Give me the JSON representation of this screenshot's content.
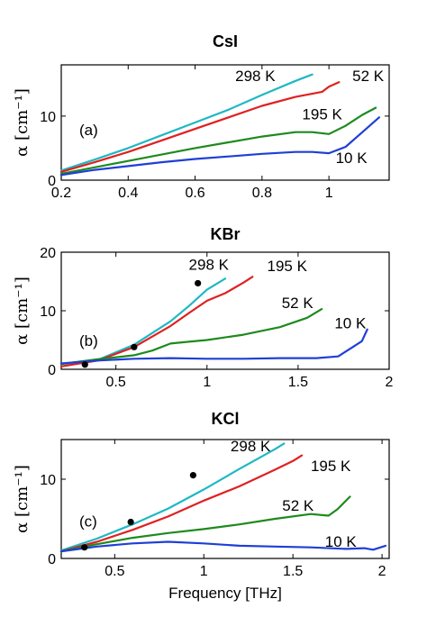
{
  "chart_data": [
    {
      "type": "line",
      "title": "CsI",
      "panel_tag": "(a)",
      "ylabel": "α [cm⁻¹]",
      "xlabel": "",
      "xlim": [
        0.2,
        1.18
      ],
      "ylim": [
        0,
        18
      ],
      "xticks": [
        0.2,
        0.4,
        0.6,
        0.8,
        1.0
      ],
      "xtick_labels": [
        "0.2",
        "0.4",
        "0.6",
        "0.8",
        "1"
      ],
      "yticks": [
        0,
        10
      ],
      "ytick_labels": [
        "0",
        "10"
      ],
      "series": [
        {
          "name": "298 K",
          "color": "#1fb8c3",
          "label_at": [
            0.72,
            15.5
          ],
          "x": [
            0.2,
            0.3,
            0.4,
            0.5,
            0.6,
            0.7,
            0.8,
            0.9,
            0.95
          ],
          "y": [
            1.5,
            3.2,
            5.0,
            7.0,
            9.0,
            11.0,
            13.3,
            15.5,
            16.5
          ]
        },
        {
          "name": "52 K",
          "color": "#e02020",
          "label_at": [
            1.07,
            15.5
          ],
          "x": [
            0.2,
            0.3,
            0.4,
            0.5,
            0.6,
            0.7,
            0.8,
            0.9,
            0.98,
            1.0,
            1.03
          ],
          "y": [
            1.3,
            2.8,
            4.4,
            6.2,
            8.0,
            9.8,
            11.6,
            13.0,
            13.8,
            14.6,
            15.3
          ]
        },
        {
          "name": "195 K",
          "color": "#1e8a1e",
          "label_at": [
            0.92,
            9.5
          ],
          "x": [
            0.2,
            0.3,
            0.4,
            0.5,
            0.6,
            0.7,
            0.8,
            0.9,
            0.95,
            1.0,
            1.05,
            1.1,
            1.14
          ],
          "y": [
            1.0,
            2.0,
            3.0,
            4.0,
            5.0,
            5.9,
            6.8,
            7.5,
            7.5,
            7.2,
            8.5,
            10.2,
            11.3
          ]
        },
        {
          "name": "10 K",
          "color": "#1f3fd6",
          "label_at": [
            1.02,
            2.7
          ],
          "x": [
            0.2,
            0.3,
            0.4,
            0.5,
            0.6,
            0.7,
            0.8,
            0.9,
            0.95,
            1.0,
            1.05,
            1.1,
            1.15
          ],
          "y": [
            0.8,
            1.6,
            2.2,
            2.8,
            3.3,
            3.7,
            4.1,
            4.4,
            4.4,
            4.2,
            5.2,
            7.5,
            9.8
          ]
        }
      ],
      "points": []
    },
    {
      "type": "line",
      "title": "KBr",
      "panel_tag": "(b)",
      "ylabel": "α [cm⁻¹]",
      "xlabel": "",
      "xlim": [
        0.2,
        2.0
      ],
      "ylim": [
        0,
        20
      ],
      "xticks": [
        0.5,
        1.0,
        1.5,
        2.0
      ],
      "xtick_labels": [
        "0.5",
        "1",
        "1.5",
        "2"
      ],
      "yticks": [
        0,
        10,
        20
      ],
      "ytick_labels": [
        "0",
        "10",
        "20"
      ],
      "series": [
        {
          "name": "298 K",
          "color": "#1fb8c3",
          "label_at": [
            0.9,
            17.0
          ],
          "x": [
            0.2,
            0.4,
            0.6,
            0.8,
            0.9,
            1.0,
            1.1
          ],
          "y": [
            0.5,
            1.6,
            4.2,
            8.2,
            10.8,
            13.6,
            15.5
          ]
        },
        {
          "name": "195 K",
          "color": "#e02020",
          "label_at": [
            1.33,
            16.8
          ],
          "x": [
            0.2,
            0.4,
            0.6,
            0.8,
            0.9,
            1.0,
            1.1,
            1.2,
            1.25
          ],
          "y": [
            0.5,
            1.5,
            3.8,
            7.4,
            9.6,
            11.7,
            13.0,
            14.8,
            15.8
          ]
        },
        {
          "name": "52 K",
          "color": "#1e8a1e",
          "label_at": [
            1.41,
            10.5
          ],
          "x": [
            0.2,
            0.4,
            0.6,
            0.7,
            0.8,
            0.9,
            1.0,
            1.2,
            1.4,
            1.55,
            1.63
          ],
          "y": [
            0.9,
            1.7,
            2.4,
            3.2,
            4.4,
            4.7,
            5.0,
            5.9,
            7.2,
            8.8,
            10.3
          ]
        },
        {
          "name": "10 K",
          "color": "#1f3fd6",
          "label_at": [
            1.7,
            7.0
          ],
          "x": [
            0.2,
            0.4,
            0.6,
            0.8,
            1.0,
            1.2,
            1.4,
            1.6,
            1.72,
            1.8,
            1.85,
            1.88
          ],
          "y": [
            1.0,
            1.5,
            1.8,
            1.9,
            1.8,
            1.8,
            1.9,
            1.9,
            2.2,
            3.8,
            4.8,
            6.8
          ]
        }
      ],
      "points": [
        {
          "x": 0.33,
          "y": 0.8
        },
        {
          "x": 0.6,
          "y": 3.8
        },
        {
          "x": 0.95,
          "y": 14.7
        }
      ]
    },
    {
      "type": "line",
      "title": "KCl",
      "panel_tag": "(c)",
      "ylabel": "α [cm⁻¹]",
      "xlabel": "Frequency [THz]",
      "xlim": [
        0.2,
        2.04
      ],
      "ylim": [
        0,
        15
      ],
      "xticks": [
        0.5,
        1.0,
        1.5,
        2.0
      ],
      "xtick_labels": [
        "0.5",
        "1",
        "1.5",
        "2"
      ],
      "yticks": [
        0,
        10
      ],
      "ytick_labels": [
        "0",
        "10"
      ],
      "series": [
        {
          "name": "298 K",
          "color": "#1fb8c3",
          "label_at": [
            1.15,
            13.5
          ],
          "x": [
            0.2,
            0.4,
            0.6,
            0.8,
            1.0,
            1.2,
            1.4,
            1.45
          ],
          "y": [
            1.0,
            2.5,
            4.3,
            6.3,
            8.7,
            11.3,
            13.8,
            14.5
          ]
        },
        {
          "name": "195 K",
          "color": "#e02020",
          "label_at": [
            1.6,
            11.0
          ],
          "x": [
            0.2,
            0.4,
            0.6,
            0.8,
            1.0,
            1.2,
            1.4,
            1.5,
            1.55
          ],
          "y": [
            0.9,
            2.1,
            3.6,
            5.3,
            7.3,
            9.1,
            11.2,
            12.3,
            13.0
          ]
        },
        {
          "name": "52 K",
          "color": "#1e8a1e",
          "label_at": [
            1.44,
            6.0
          ],
          "x": [
            0.2,
            0.4,
            0.6,
            0.8,
            1.0,
            1.2,
            1.4,
            1.6,
            1.7,
            1.75,
            1.82
          ],
          "y": [
            0.9,
            1.8,
            2.6,
            3.2,
            3.7,
            4.3,
            5.0,
            5.6,
            5.4,
            6.2,
            7.8
          ]
        },
        {
          "name": "10 K",
          "color": "#1f3fd6",
          "label_at": [
            1.68,
            1.5
          ],
          "x": [
            0.2,
            0.4,
            0.6,
            0.8,
            1.0,
            1.2,
            1.4,
            1.6,
            1.8,
            1.9,
            1.95,
            2.02
          ],
          "y": [
            0.9,
            1.5,
            1.9,
            2.1,
            1.9,
            1.6,
            1.5,
            1.4,
            1.2,
            1.3,
            1.1,
            1.6
          ]
        }
      ],
      "points": [
        {
          "x": 0.33,
          "y": 1.4
        },
        {
          "x": 0.59,
          "y": 4.6
        },
        {
          "x": 0.94,
          "y": 10.5
        }
      ]
    }
  ]
}
